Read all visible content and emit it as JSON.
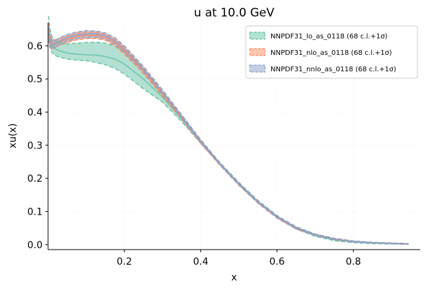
{
  "chart_data": {
    "type": "line",
    "title": "u at 10.0 GeV",
    "xlabel": "x",
    "ylabel": "xu(x)",
    "xlim": [
      0.0,
      0.975
    ],
    "ylim": [
      -0.015,
      0.67
    ],
    "xticks": [
      {
        "value": 0.2,
        "label": "0.2"
      },
      {
        "value": 0.4,
        "label": "0.4"
      },
      {
        "value": 0.6,
        "label": "0.6"
      },
      {
        "value": 0.8,
        "label": "0.8"
      }
    ],
    "yticks": [
      {
        "value": 0.0,
        "label": "0.0"
      },
      {
        "value": 0.1,
        "label": "0.1"
      },
      {
        "value": 0.2,
        "label": "0.2"
      },
      {
        "value": 0.3,
        "label": "0.3"
      },
      {
        "value": 0.4,
        "label": "0.4"
      },
      {
        "value": 0.5,
        "label": "0.5"
      },
      {
        "value": 0.6,
        "label": "0.6"
      }
    ],
    "grid": true,
    "legend_position": "top-right",
    "x": [
      0.001,
      0.005,
      0.01,
      0.02,
      0.03,
      0.05,
      0.075,
      0.1,
      0.125,
      0.15,
      0.175,
      0.2,
      0.25,
      0.3,
      0.35,
      0.4,
      0.45,
      0.5,
      0.55,
      0.6,
      0.65,
      0.7,
      0.75,
      0.8,
      0.85,
      0.9,
      0.945
    ],
    "series": [
      {
        "name": "NNPDF31_lo_as_0118 (68 c.l.+1σ)",
        "color": "#66c2a5",
        "central": [
          0.66,
          0.62,
          0.6,
          0.59,
          0.585,
          0.578,
          0.575,
          0.573,
          0.572,
          0.568,
          0.56,
          0.545,
          0.5,
          0.445,
          0.38,
          0.31,
          0.245,
          0.185,
          0.13,
          0.085,
          0.05,
          0.028,
          0.015,
          0.008,
          0.005,
          0.003,
          0.002
        ],
        "upper": [
          0.69,
          0.65,
          0.628,
          0.615,
          0.61,
          0.606,
          0.608,
          0.61,
          0.611,
          0.608,
          0.6,
          0.585,
          0.53,
          0.46,
          0.388,
          0.314,
          0.248,
          0.188,
          0.133,
          0.088,
          0.053,
          0.031,
          0.018,
          0.01,
          0.006,
          0.004,
          0.003
        ],
        "lower": [
          0.64,
          0.6,
          0.58,
          0.57,
          0.566,
          0.56,
          0.557,
          0.555,
          0.55,
          0.543,
          0.532,
          0.515,
          0.47,
          0.43,
          0.372,
          0.306,
          0.242,
          0.182,
          0.127,
          0.082,
          0.047,
          0.025,
          0.012,
          0.006,
          0.003,
          0.002,
          0.001
        ]
      },
      {
        "name": "NNPDF31_nlo_as_0118 (68 c.l.+1σ)",
        "color": "#fc8d62",
        "central": [
          0.65,
          0.615,
          0.605,
          0.607,
          0.612,
          0.62,
          0.628,
          0.632,
          0.632,
          0.626,
          0.61,
          0.585,
          0.525,
          0.455,
          0.383,
          0.31,
          0.243,
          0.182,
          0.128,
          0.083,
          0.05,
          0.03,
          0.017,
          0.01,
          0.006,
          0.004,
          0.002
        ],
        "upper": [
          0.67,
          0.632,
          0.619,
          0.618,
          0.622,
          0.63,
          0.638,
          0.642,
          0.641,
          0.635,
          0.62,
          0.595,
          0.533,
          0.462,
          0.388,
          0.314,
          0.246,
          0.185,
          0.131,
          0.086,
          0.053,
          0.032,
          0.019,
          0.011,
          0.007,
          0.005,
          0.003
        ],
        "lower": [
          0.63,
          0.598,
          0.591,
          0.596,
          0.602,
          0.61,
          0.618,
          0.622,
          0.622,
          0.617,
          0.6,
          0.575,
          0.517,
          0.448,
          0.378,
          0.306,
          0.24,
          0.179,
          0.125,
          0.08,
          0.047,
          0.028,
          0.015,
          0.009,
          0.005,
          0.003,
          0.001
        ]
      },
      {
        "name": "NNPDF31_nnlo_as_0118 (68 c.l.+1σ)",
        "color": "#8da0cb",
        "central": [
          0.64,
          0.61,
          0.603,
          0.607,
          0.614,
          0.624,
          0.632,
          0.636,
          0.636,
          0.63,
          0.615,
          0.59,
          0.53,
          0.46,
          0.387,
          0.313,
          0.245,
          0.183,
          0.129,
          0.084,
          0.051,
          0.03,
          0.017,
          0.01,
          0.006,
          0.004,
          0.002
        ],
        "upper": [
          0.66,
          0.625,
          0.616,
          0.618,
          0.624,
          0.634,
          0.642,
          0.646,
          0.645,
          0.639,
          0.625,
          0.6,
          0.538,
          0.467,
          0.392,
          0.317,
          0.248,
          0.186,
          0.132,
          0.087,
          0.054,
          0.032,
          0.019,
          0.011,
          0.007,
          0.005,
          0.003
        ],
        "lower": [
          0.62,
          0.595,
          0.59,
          0.596,
          0.604,
          0.614,
          0.622,
          0.626,
          0.626,
          0.621,
          0.605,
          0.58,
          0.522,
          0.453,
          0.382,
          0.309,
          0.242,
          0.18,
          0.126,
          0.081,
          0.048,
          0.028,
          0.015,
          0.009,
          0.005,
          0.003,
          0.001
        ]
      }
    ]
  }
}
